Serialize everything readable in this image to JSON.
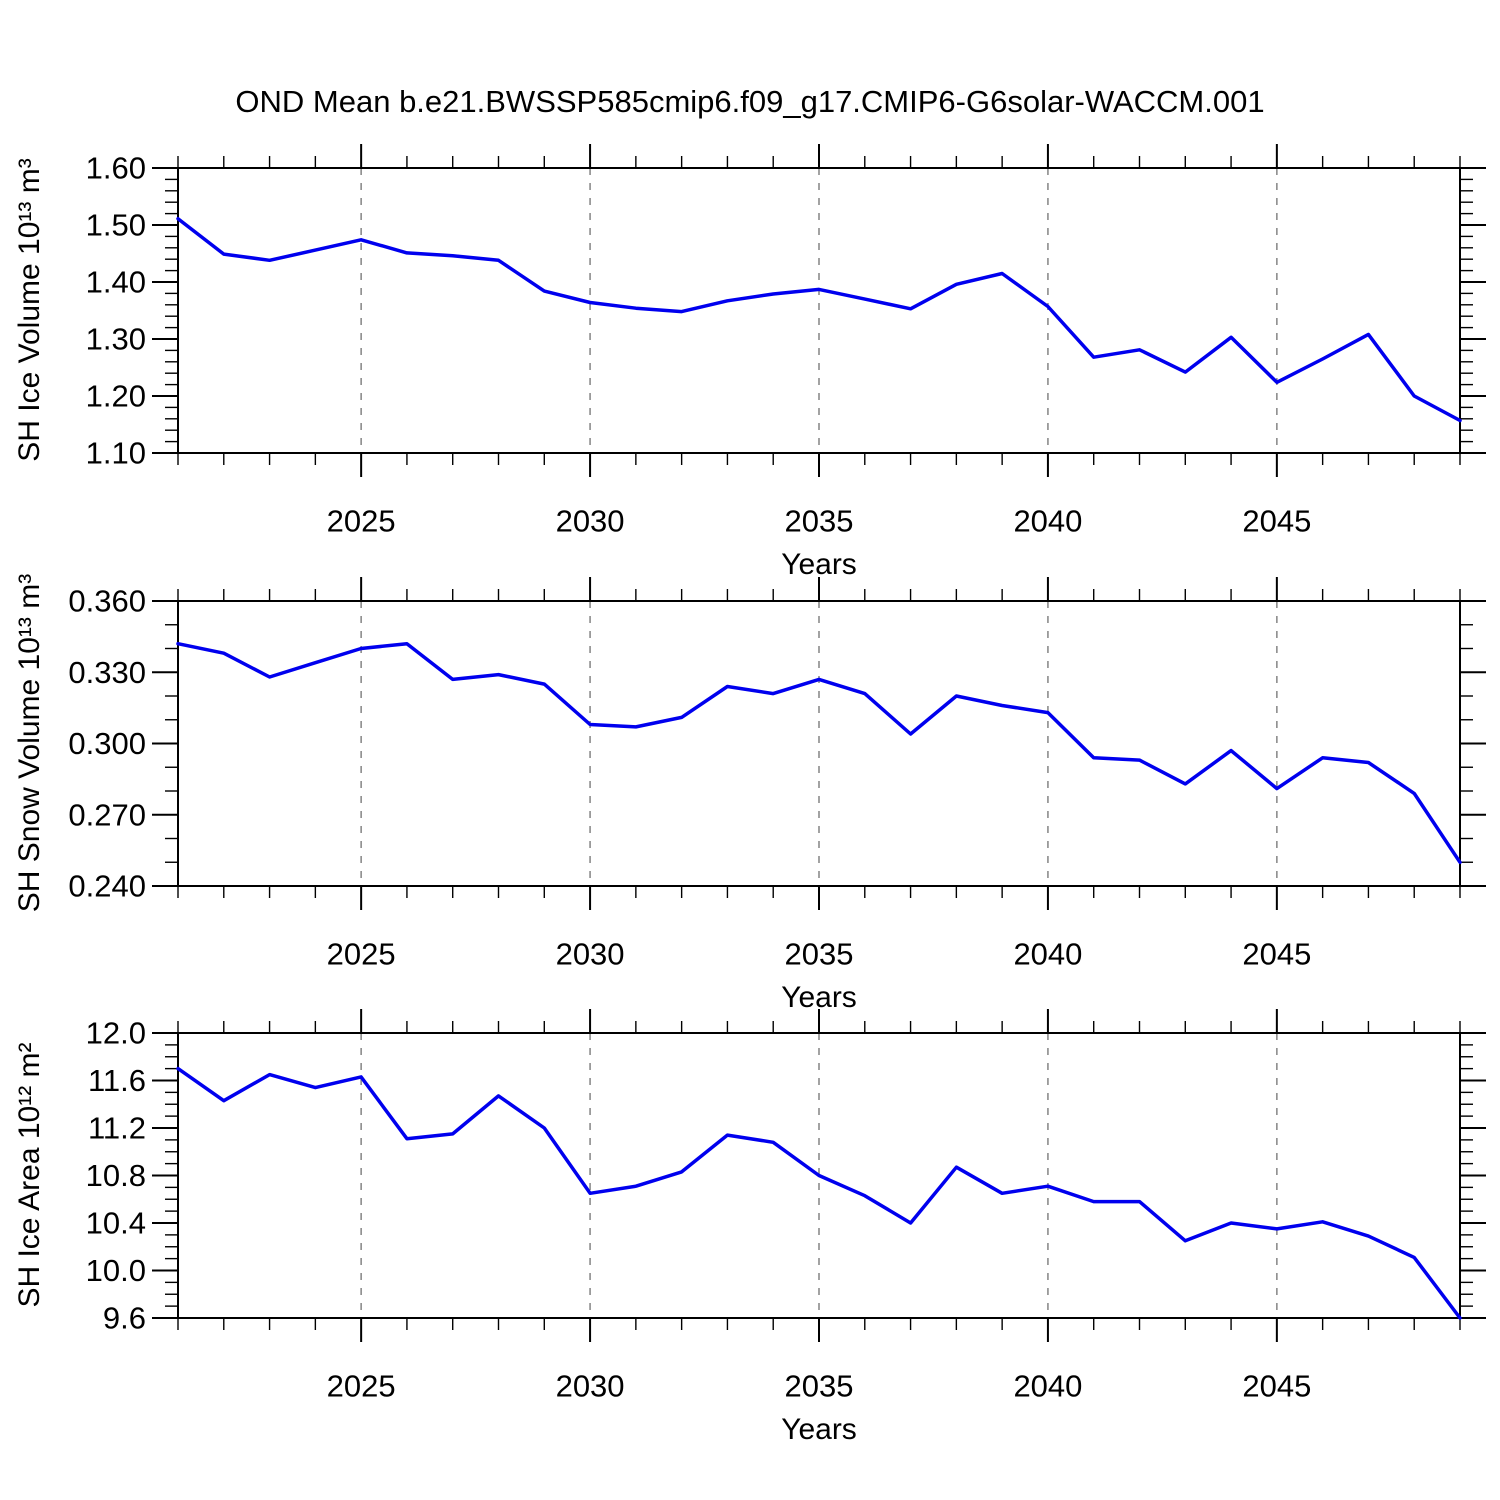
{
  "figure_title": "OND Mean b.e21.BWSSP585cmip6.f09_g17.CMIP6-G6solar-WACCM.001",
  "line_color": "#0000ee",
  "grid_color": "#8c8c8c",
  "axis_color": "#000000",
  "chart_data": [
    {
      "type": "line",
      "ylabel": "SH Ice Volume 10¹³ m³",
      "xlabel": "Years",
      "x": [
        2021,
        2022,
        2023,
        2024,
        2025,
        2026,
        2027,
        2028,
        2029,
        2030,
        2031,
        2032,
        2033,
        2034,
        2035,
        2036,
        2037,
        2038,
        2039,
        2040,
        2041,
        2042,
        2043,
        2044,
        2045,
        2046,
        2047,
        2048,
        2049
      ],
      "values": [
        1.511,
        1.449,
        1.438,
        1.456,
        1.474,
        1.451,
        1.446,
        1.438,
        1.384,
        1.364,
        1.354,
        1.348,
        1.367,
        1.379,
        1.387,
        1.37,
        1.353,
        1.396,
        1.415,
        1.357,
        1.268,
        1.281,
        1.242,
        1.303,
        1.224,
        1.265,
        1.308,
        1.2,
        1.157
      ],
      "ylim": [
        1.1,
        1.6
      ],
      "y_major_ticks": [
        1.1,
        1.2,
        1.3,
        1.4,
        1.5,
        1.6
      ],
      "y_tick_labels": [
        "1.10",
        "1.20",
        "1.30",
        "1.40",
        "1.50",
        "1.60"
      ],
      "y_minor_step": 0.02,
      "xlim": [
        2021,
        2049
      ],
      "x_major_ticks": [
        2025,
        2030,
        2035,
        2040,
        2045
      ],
      "x_tick_labels": [
        "2025",
        "2030",
        "2035",
        "2040",
        "2045"
      ],
      "x_minor_step": 1,
      "grid": "vertical dashed lines at x major ticks"
    },
    {
      "type": "line",
      "ylabel": "SH Snow Volume 10¹³ m³",
      "xlabel": "Years",
      "x": [
        2021,
        2022,
        2023,
        2024,
        2025,
        2026,
        2027,
        2028,
        2029,
        2030,
        2031,
        2032,
        2033,
        2034,
        2035,
        2036,
        2037,
        2038,
        2039,
        2040,
        2041,
        2042,
        2043,
        2044,
        2045,
        2046,
        2047,
        2048,
        2049
      ],
      "values": [
        0.342,
        0.338,
        0.328,
        0.334,
        0.34,
        0.342,
        0.327,
        0.329,
        0.325,
        0.308,
        0.307,
        0.311,
        0.324,
        0.321,
        0.327,
        0.321,
        0.304,
        0.32,
        0.316,
        0.313,
        0.294,
        0.293,
        0.283,
        0.297,
        0.281,
        0.294,
        0.292,
        0.279,
        0.25
      ],
      "ylim": [
        0.24,
        0.36
      ],
      "y_major_ticks": [
        0.24,
        0.27,
        0.3,
        0.33,
        0.36
      ],
      "y_tick_labels": [
        "0.240",
        "0.270",
        "0.300",
        "0.330",
        "0.360"
      ],
      "y_minor_step": 0.01,
      "xlim": [
        2021,
        2049
      ],
      "x_major_ticks": [
        2025,
        2030,
        2035,
        2040,
        2045
      ],
      "x_tick_labels": [
        "2025",
        "2030",
        "2035",
        "2040",
        "2045"
      ],
      "x_minor_step": 1,
      "grid": "vertical dashed lines at x major ticks"
    },
    {
      "type": "line",
      "ylabel": "SH Ice Area 10¹² m²",
      "xlabel": "Years",
      "x": [
        2021,
        2022,
        2023,
        2024,
        2025,
        2026,
        2027,
        2028,
        2029,
        2030,
        2031,
        2032,
        2033,
        2034,
        2035,
        2036,
        2037,
        2038,
        2039,
        2040,
        2041,
        2042,
        2043,
        2044,
        2045,
        2046,
        2047,
        2048,
        2049
      ],
      "values": [
        11.7,
        11.43,
        11.65,
        11.54,
        11.63,
        11.11,
        11.15,
        11.47,
        11.2,
        10.65,
        10.71,
        10.83,
        11.14,
        11.08,
        10.8,
        10.63,
        10.4,
        10.87,
        10.65,
        10.71,
        10.58,
        10.58,
        10.25,
        10.4,
        10.35,
        10.41,
        10.29,
        10.11,
        9.6
      ],
      "ylim": [
        9.6,
        12.0
      ],
      "y_major_ticks": [
        9.6,
        10.0,
        10.4,
        10.8,
        11.2,
        11.6,
        12.0
      ],
      "y_tick_labels": [
        "9.6",
        "10.0",
        "10.4",
        "10.8",
        "11.2",
        "11.6",
        "12.0"
      ],
      "y_minor_step": 0.1,
      "xlim": [
        2021,
        2049
      ],
      "x_major_ticks": [
        2025,
        2030,
        2035,
        2040,
        2045
      ],
      "x_tick_labels": [
        "2025",
        "2030",
        "2035",
        "2040",
        "2045"
      ],
      "x_minor_step": 1,
      "grid": "vertical dashed lines at x major ticks"
    }
  ]
}
